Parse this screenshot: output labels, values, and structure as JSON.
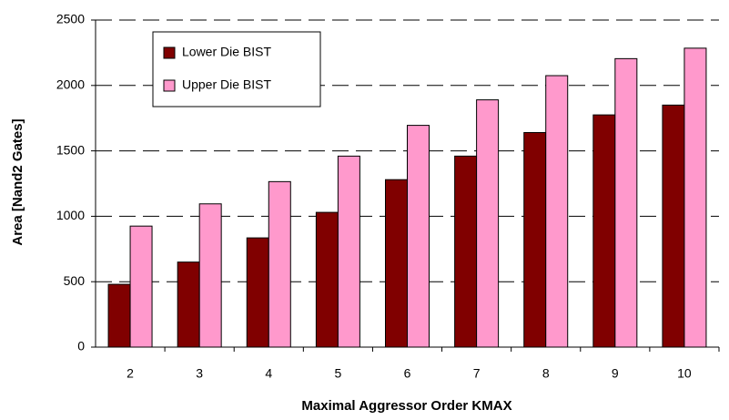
{
  "chart_data": {
    "type": "bar",
    "xlabel": "Maximal Aggressor Order KMAX",
    "ylabel": "Area [Nand2 Gates]",
    "categories": [
      "2",
      "3",
      "4",
      "5",
      "6",
      "7",
      "8",
      "9",
      "10"
    ],
    "series": [
      {
        "name": "Lower Die BIST",
        "color": "#800000",
        "values": [
          480,
          650,
          835,
          1030,
          1280,
          1460,
          1640,
          1775,
          1850
        ]
      },
      {
        "name": "Upper Die BIST",
        "color": "#ff99cc",
        "values": [
          925,
          1095,
          1265,
          1460,
          1695,
          1890,
          2075,
          2205,
          2285
        ]
      }
    ],
    "ylim": [
      0,
      2500
    ],
    "yticks": [
      0,
      500,
      1000,
      1500,
      2000,
      2500
    ],
    "grid": true
  }
}
